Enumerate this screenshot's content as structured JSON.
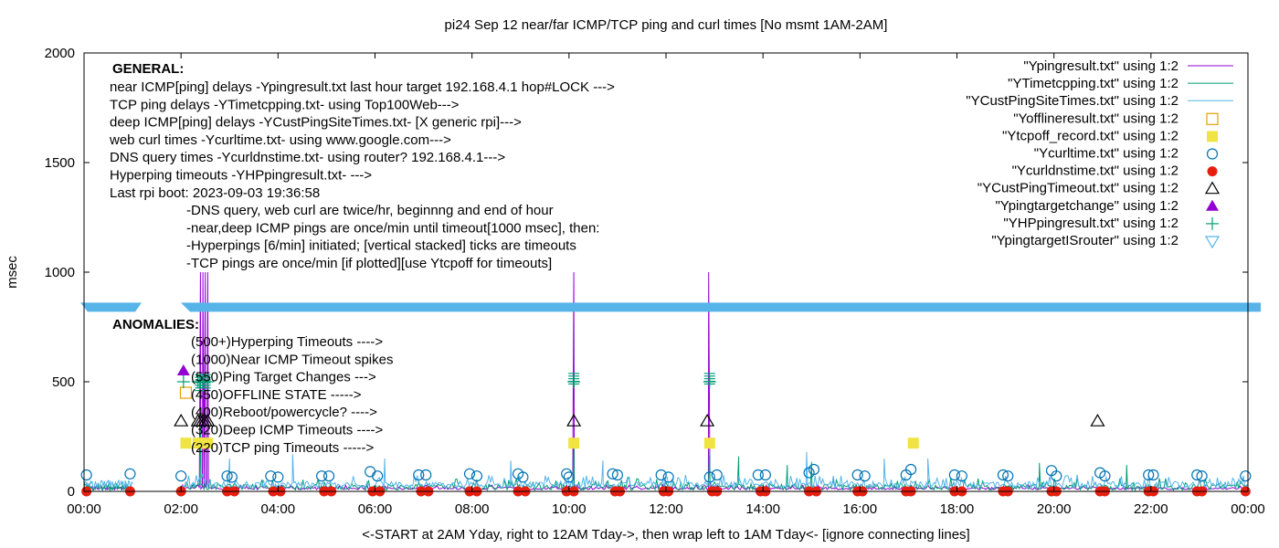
{
  "chart_data": {
    "type": "scatter",
    "title": "pi24 Sep 12  near/far ICMP/TCP ping and curl times [No msmt 1AM-2AM]",
    "xlabel": "<-START at 2AM Yday, right to 12AM Tday->, then wrap left to 1AM Tday<- [ignore connecting lines]",
    "ylabel": "msec",
    "xlim": [
      0,
      24
    ],
    "ylim": [
      0,
      2000
    ],
    "x_ticks": [
      "00:00",
      "02:00",
      "04:00",
      "06:00",
      "08:00",
      "10:00",
      "12:00",
      "14:00",
      "16:00",
      "18:00",
      "20:00",
      "22:00",
      "00:00"
    ],
    "y_ticks": [
      0,
      500,
      1000,
      1500,
      2000
    ],
    "grid": false,
    "legend_position": "top-right",
    "series": [
      {
        "name": "\"Ypingresult.txt\" using 1:2",
        "style": "line",
        "color": "#9400d3",
        "baseline": [
          8,
          30
        ],
        "spikes": [
          [
            2.4,
            1000
          ],
          [
            2.45,
            1000
          ],
          [
            2.5,
            1000
          ],
          [
            2.55,
            1000
          ],
          [
            10.1,
            1000
          ],
          [
            12.88,
            1000
          ]
        ]
      },
      {
        "name": "\"YTimetcpping.txt\" using 1:2",
        "style": "line",
        "color": "#009e73",
        "baseline": [
          5,
          60
        ],
        "spikes": [
          [
            2.4,
            300
          ],
          [
            10.1,
            200
          ],
          [
            12.9,
            180
          ],
          [
            13.5,
            160
          ],
          [
            14.5,
            120
          ],
          [
            15.0,
            135
          ],
          [
            19.7,
            130
          ],
          [
            21.5,
            120
          ]
        ]
      },
      {
        "name": "\"YCustPingSiteTimes.txt\" using 1:2",
        "style": "line",
        "color": "#56b4e9",
        "baseline": [
          15,
          75
        ],
        "spikes": [
          [
            3.0,
            150
          ],
          [
            4.3,
            170
          ],
          [
            6.2,
            150
          ],
          [
            8.8,
            140
          ],
          [
            10.7,
            140
          ],
          [
            14.9,
            180
          ],
          [
            16.5,
            150
          ],
          [
            17.4,
            150
          ]
        ]
      },
      {
        "name": "\"Yofflineresult.txt\" using 1:2",
        "style": "open-square",
        "color": "#e69f00",
        "points": [
          [
            2.1,
            450
          ]
        ]
      },
      {
        "name": "\"Ytcpoff_record.txt\" using 1:2",
        "style": "filled-square",
        "color": "#f0e442",
        "points": [
          [
            2.1,
            220
          ],
          [
            2.35,
            220
          ],
          [
            2.45,
            220
          ],
          [
            2.55,
            220
          ],
          [
            10.1,
            220
          ],
          [
            12.9,
            220
          ],
          [
            17.1,
            220
          ]
        ]
      },
      {
        "name": "\"Ycurltime.txt\" using 1:2",
        "style": "open-circle",
        "color": "#0072b2",
        "points": [
          [
            0.05,
            75
          ],
          [
            0.95,
            80
          ],
          [
            2.0,
            70
          ],
          [
            2.95,
            70
          ],
          [
            3.05,
            65
          ],
          [
            3.85,
            70
          ],
          [
            4.0,
            65
          ],
          [
            4.9,
            70
          ],
          [
            5.05,
            70
          ],
          [
            5.9,
            90
          ],
          [
            6.05,
            70
          ],
          [
            6.9,
            75
          ],
          [
            7.05,
            75
          ],
          [
            7.95,
            80
          ],
          [
            8.1,
            70
          ],
          [
            8.95,
            80
          ],
          [
            9.05,
            65
          ],
          [
            9.95,
            80
          ],
          [
            10.0,
            65
          ],
          [
            10.9,
            80
          ],
          [
            11.0,
            75
          ],
          [
            11.9,
            75
          ],
          [
            12.05,
            65
          ],
          [
            12.9,
            65
          ],
          [
            13.05,
            75
          ],
          [
            13.9,
            75
          ],
          [
            14.05,
            75
          ],
          [
            14.95,
            85
          ],
          [
            15.05,
            100
          ],
          [
            15.95,
            75
          ],
          [
            16.1,
            70
          ],
          [
            16.95,
            75
          ],
          [
            17.05,
            100
          ],
          [
            17.95,
            75
          ],
          [
            18.1,
            70
          ],
          [
            18.95,
            75
          ],
          [
            19.05,
            70
          ],
          [
            19.95,
            95
          ],
          [
            20.05,
            70
          ],
          [
            20.95,
            85
          ],
          [
            21.05,
            70
          ],
          [
            21.95,
            75
          ],
          [
            22.05,
            75
          ],
          [
            22.95,
            75
          ],
          [
            23.05,
            70
          ],
          [
            23.95,
            70
          ]
        ]
      },
      {
        "name": "\"Ycurldnstime.txt\" using 1:2",
        "style": "filled-circle",
        "color": "#e51e10",
        "points": [
          [
            0.05,
            0
          ],
          [
            0.95,
            0
          ],
          [
            2.0,
            0
          ],
          [
            2.95,
            0
          ],
          [
            3.1,
            0
          ],
          [
            3.9,
            0
          ],
          [
            4.05,
            0
          ],
          [
            4.95,
            0
          ],
          [
            5.1,
            0
          ],
          [
            5.95,
            0
          ],
          [
            6.1,
            0
          ],
          [
            6.95,
            0
          ],
          [
            7.1,
            0
          ],
          [
            7.95,
            0
          ],
          [
            8.1,
            0
          ],
          [
            8.95,
            0
          ],
          [
            9.1,
            0
          ],
          [
            9.95,
            0
          ],
          [
            10.1,
            0
          ],
          [
            10.95,
            0
          ],
          [
            11.05,
            0
          ],
          [
            11.95,
            0
          ],
          [
            12.05,
            0
          ],
          [
            12.95,
            0
          ],
          [
            13.05,
            0
          ],
          [
            13.95,
            0
          ],
          [
            14.05,
            0
          ],
          [
            14.95,
            0
          ],
          [
            15.1,
            0
          ],
          [
            15.95,
            0
          ],
          [
            16.05,
            0
          ],
          [
            16.95,
            0
          ],
          [
            17.05,
            0
          ],
          [
            17.95,
            0
          ],
          [
            18.1,
            0
          ],
          [
            18.95,
            0
          ],
          [
            19.05,
            0
          ],
          [
            19.95,
            0
          ],
          [
            20.05,
            0
          ],
          [
            20.95,
            0
          ],
          [
            21.05,
            0
          ],
          [
            21.95,
            0
          ],
          [
            22.05,
            0
          ],
          [
            22.95,
            0
          ],
          [
            23.05,
            0
          ],
          [
            23.95,
            0
          ]
        ]
      },
      {
        "name": "\"YCustPingTimeout.txt\" using 1:2",
        "style": "open-triangle",
        "color": "#000000",
        "points": [
          [
            2.0,
            320
          ],
          [
            2.35,
            320
          ],
          [
            2.4,
            320
          ],
          [
            2.45,
            320
          ],
          [
            2.5,
            320
          ],
          [
            2.55,
            320
          ],
          [
            10.1,
            320
          ],
          [
            12.85,
            320
          ],
          [
            20.9,
            320
          ]
        ]
      },
      {
        "name": "\"Ypingtargetchange\" using 1:2",
        "style": "filled-triangle",
        "color": "#9400d3",
        "points": [
          [
            2.05,
            550
          ]
        ]
      },
      {
        "name": "\"YHPpingresult.txt\" using 1:2",
        "style": "plus",
        "color": "#009e73",
        "points": [
          [
            2.05,
            500
          ],
          [
            2.35,
            500
          ],
          [
            2.4,
            500
          ],
          [
            2.45,
            500
          ],
          [
            2.5,
            500
          ],
          [
            2.55,
            500
          ],
          [
            10.1,
            500
          ],
          [
            12.9,
            500
          ]
        ],
        "stacked_ticks": [
          [
            2.4,
            460,
            540
          ],
          [
            2.5,
            460,
            540
          ],
          [
            10.1,
            490,
            540
          ],
          [
            12.9,
            490,
            540
          ]
        ]
      },
      {
        "name": "\"YpingtargetISrouter\" using 1:2",
        "style": "open-inverted-triangle",
        "color": "#56b4e9",
        "points": []
      }
    ],
    "threshold_band": {
      "y": 840,
      "color": "#56b4e9"
    }
  },
  "annotations": {
    "general_header": "GENERAL:",
    "general_lines": [
      "near ICMP[ping] delays -Ypingresult.txt last hour target 192.168.4.1 hop#LOCK --->",
      "TCP ping delays -YTimetcpping.txt- using Top100Web--->",
      "deep ICMP[ping] delays -YCustPingSiteTimes.txt- [X generic rpi]--->",
      "web curl times -Ycurltime.txt- using www.google.com--->",
      "DNS query times -Ycurldnstime.txt- using router? 192.168.4.1--->",
      "Hyperping timeouts -YHPpingresult.txt- --->",
      "Last rpi boot: 2023-09-03 19:36:58"
    ],
    "notes": [
      "-DNS query, web curl are twice/hr, beginnng and end of hour",
      "-near,deep ICMP pings are once/min until timeout[1000 msec], then:",
      "  -Hyperpings [6/min] initiated; [vertical stacked] ticks are timeouts",
      "-TCP pings are once/min [if plotted][use Ytcpoff for timeouts]"
    ],
    "anomalies_header": "ANOMALIES:",
    "anomaly_lines": [
      "(500+)Hyperping Timeouts ---->",
      "(1000)Near ICMP Timeout spikes",
      "(550)Ping Target Changes --->",
      "(450)OFFLINE STATE ----->",
      "(400)Reboot/powercycle? ---->",
      "(320)Deep ICMP Timeouts ---->",
      "(220)TCP ping Timeouts ----->"
    ]
  }
}
